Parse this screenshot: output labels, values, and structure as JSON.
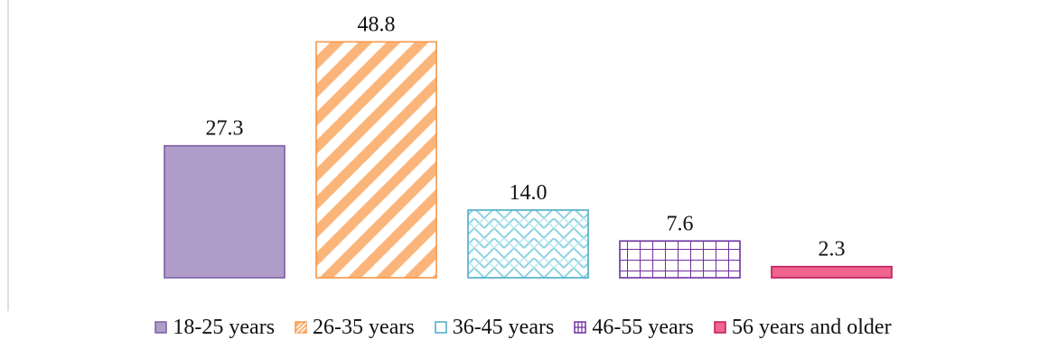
{
  "chart_data": {
    "type": "bar",
    "categories": [
      "18-25 years",
      "26-35 years",
      "36-45 years",
      "46-55 years",
      "56 years and older"
    ],
    "values": [
      27.3,
      48.8,
      14.0,
      7.6,
      2.3
    ],
    "value_labels": [
      "27.3",
      "48.8",
      "14.0",
      "7.6",
      "2.3"
    ],
    "ylim": [
      0,
      50
    ],
    "grid": false,
    "legend_position": "bottom",
    "series_styles": [
      {
        "fill": "#b09cc8",
        "stroke": "#7b5ea3",
        "pattern": "solid"
      },
      {
        "fill": "#fbb57a",
        "stroke": "#f79646",
        "pattern": "diagonal-stripes"
      },
      {
        "fill": "#aee3ee",
        "stroke": "#4bacc6",
        "pattern": "zigzag"
      },
      {
        "fill": "#7030a0",
        "stroke": "#7030a0",
        "pattern": "grid"
      },
      {
        "fill": "#f0648f",
        "stroke": "#c0185a",
        "pattern": "solid"
      }
    ]
  }
}
